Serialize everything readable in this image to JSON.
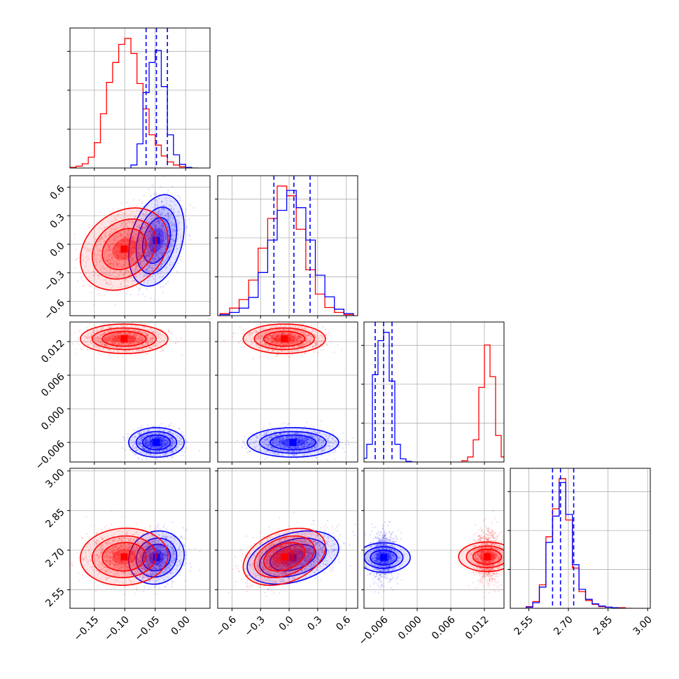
{
  "colors": {
    "blue": "#0000ff",
    "red": "#ff0000",
    "grid": "#b0b0b0"
  },
  "chart_data": {
    "type": "corner",
    "title": "",
    "grid": true,
    "series": [
      {
        "color": "#0000ff"
      },
      {
        "color": "#ff0000"
      }
    ],
    "parameters": [
      {
        "range": [
          -0.19,
          0.04
        ],
        "ticks": [
          -0.15,
          -0.1,
          -0.05,
          0.0
        ],
        "tick_labels": [
          "−0.15",
          "−0.10",
          "−0.05",
          "0.00"
        ],
        "quantiles_blue": [
          -0.065,
          -0.048,
          -0.03
        ]
      },
      {
        "range": [
          -0.75,
          0.72
        ],
        "ticks": [
          -0.6,
          -0.3,
          0.0,
          0.3,
          0.6
        ],
        "tick_labels": [
          "−0.6",
          "−0.3",
          "0.0",
          "0.3",
          "0.6"
        ],
        "quantiles_blue": [
          -0.16,
          0.05,
          0.22
        ]
      },
      {
        "range": [
          -0.0095,
          0.0155
        ],
        "ticks": [
          -0.006,
          0.0,
          0.006,
          0.012
        ],
        "tick_labels": [
          "−0.006",
          "0.000",
          "0.006",
          "0.012"
        ],
        "quantiles_blue": [
          -0.0075,
          -0.006,
          -0.0045
        ]
      },
      {
        "range": [
          2.48,
          3.01
        ],
        "ticks": [
          2.55,
          2.7,
          2.85,
          3.0
        ],
        "tick_labels": [
          "2.55",
          "2.70",
          "2.85",
          "3.00"
        ],
        "quantiles_blue": [
          2.64,
          2.67,
          2.72
        ]
      }
    ],
    "histograms": [
      {
        "blue": {
          "x": [
            -0.085,
            -0.075,
            -0.065,
            -0.055,
            -0.045,
            -0.035,
            -0.025,
            -0.015,
            -0.005,
            0.005
          ],
          "values": [
            5,
            40,
            125,
            175,
            195,
            135,
            55,
            22,
            6,
            1
          ]
        },
        "red": {
          "x": [
            -0.185,
            -0.175,
            -0.165,
            -0.155,
            -0.145,
            -0.135,
            -0.125,
            -0.115,
            -0.105,
            -0.095,
            -0.085,
            -0.075,
            -0.065,
            -0.055,
            -0.045,
            -0.035,
            -0.025,
            -0.015,
            -0.005,
            0.005,
            0.015
          ],
          "values": [
            1,
            3,
            7,
            18,
            42,
            90,
            142,
            175,
            205,
            215,
            190,
            140,
            98,
            55,
            38,
            20,
            10,
            5,
            2,
            1,
            0
          ]
        }
      },
      {
        "blue": {
          "x": [
            -0.675,
            -0.575,
            -0.475,
            -0.375,
            -0.275,
            -0.175,
            -0.075,
            0.025,
            0.125,
            0.225,
            0.325,
            0.425,
            0.525,
            0.625
          ],
          "values": [
            2,
            6,
            14,
            34,
            80,
            140,
            195,
            232,
            200,
            140,
            75,
            35,
            12,
            4
          ]
        },
        "red": {
          "x": [
            -0.675,
            -0.575,
            -0.475,
            -0.375,
            -0.275,
            -0.175,
            -0.075,
            0.025,
            0.125,
            0.225,
            0.325,
            0.425,
            0.525,
            0.625
          ],
          "values": [
            4,
            14,
            30,
            66,
            125,
            180,
            240,
            222,
            160,
            85,
            40,
            15,
            6,
            2
          ]
        }
      },
      {
        "blue": {
          "x": [
            -0.0095,
            -0.0085,
            -0.0075,
            -0.0065,
            -0.0055,
            -0.0045,
            -0.0035,
            -0.0025,
            -0.0015,
            -0.0005
          ],
          "values": [
            6,
            28,
            138,
            192,
            205,
            128,
            28,
            5,
            1,
            0
          ]
        },
        "red": {
          "x": [
            0.0085,
            0.0095,
            0.0105,
            0.0115,
            0.0125,
            0.0135,
            0.0145,
            0.0155
          ],
          "values": [
            2,
            8,
            35,
            118,
            185,
            135,
            42,
            8
          ]
        }
      },
      {
        "blue": {
          "x": [
            2.5525,
            2.5775,
            2.6025,
            2.6275,
            2.6525,
            2.6775,
            2.7025,
            2.7275,
            2.7525,
            2.7775,
            2.8025,
            2.8275,
            2.8525,
            2.8775
          ],
          "values": [
            2,
            10,
            38,
            118,
            165,
            225,
            168,
            78,
            34,
            16,
            8,
            4,
            2,
            1
          ]
        },
        "red": {
          "x": [
            2.5525,
            2.5775,
            2.6025,
            2.6275,
            2.6525,
            2.6775,
            2.7025,
            2.7275,
            2.7525,
            2.7775,
            2.8025,
            2.8275,
            2.8525,
            2.8775,
            2.9025,
            2.9275
          ],
          "values": [
            3,
            12,
            42,
            128,
            178,
            232,
            158,
            72,
            30,
            14,
            7,
            3,
            2,
            1,
            1,
            0
          ]
        }
      }
    ],
    "distributions": {
      "blue": {
        "mean": [
          -0.048,
          0.04,
          -0.006,
          2.672
        ],
        "sd": [
          0.019,
          0.2,
          0.0011,
          0.042
        ]
      },
      "red": {
        "mean": [
          -0.101,
          -0.05,
          0.0125,
          2.675
        ],
        "sd": [
          0.03,
          0.18,
          0.0011,
          0.045
        ]
      }
    }
  }
}
